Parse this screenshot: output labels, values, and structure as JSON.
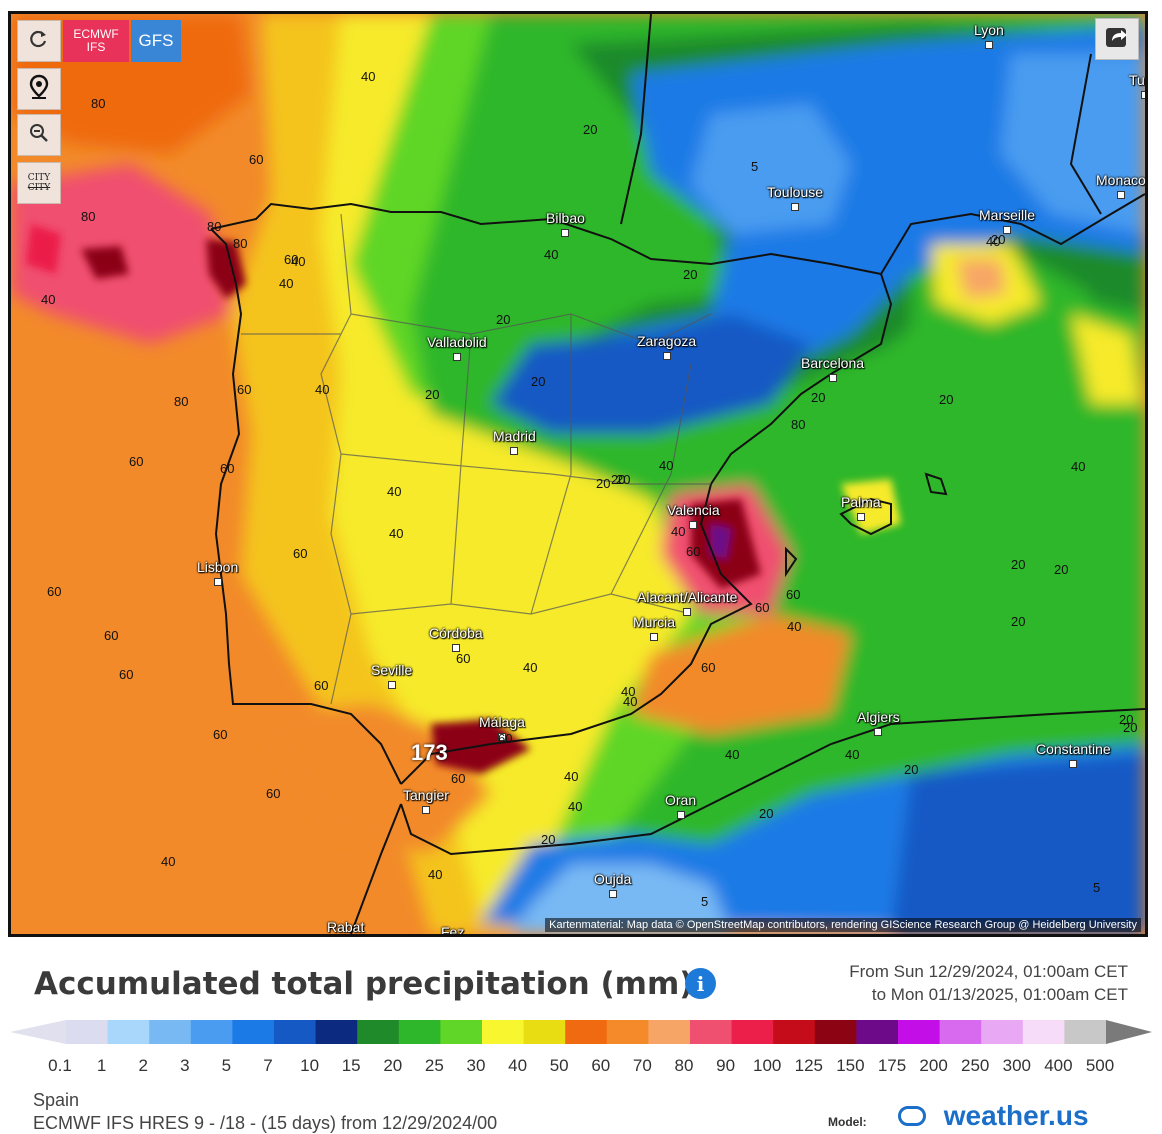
{
  "controls": {
    "refresh_icon": "refresh-icon",
    "locate_icon": "location-pin-icon",
    "zoom_out_icon": "zoom-out-icon",
    "city_toggle_label": "CITY",
    "city_toggle_label_strike": "CITY",
    "share_icon": "share-icon"
  },
  "models": [
    {
      "label_line1": "ECMWF",
      "label_line2": "IFS",
      "color": "#e8325a",
      "active": true
    },
    {
      "label_line1": "GFS",
      "label_line2": "",
      "color": "#3a86d6",
      "active": false
    }
  ],
  "map": {
    "cities": [
      "Lyon",
      "Turin",
      "Monaco",
      "Toulouse",
      "Marseille",
      "Bilbao",
      "Valladolid",
      "Zaragoza",
      "Barcelona",
      "Madrid",
      "Valencia",
      "Palma",
      "Lisbon",
      "Alacant/Alicante",
      "Murcia",
      "Córdoba",
      "Seville",
      "Málaga",
      "Algiers",
      "Constantine",
      "Tangier",
      "Oran",
      "Oujda",
      "Rabat",
      "Fez"
    ],
    "contour_labels": [
      "40",
      "80",
      "60",
      "80",
      "80",
      "80",
      "60",
      "40",
      "40",
      "60",
      "80",
      "60",
      "60",
      "60",
      "60",
      "60",
      "60",
      "60",
      "60",
      "60",
      "60",
      "40",
      "20",
      "20",
      "20",
      "20",
      "20",
      "20",
      "20",
      "20",
      "20",
      "40",
      "40",
      "40",
      "40",
      "40",
      "40",
      "40",
      "40",
      "40",
      "40",
      "40",
      "40",
      "40",
      "40",
      "40",
      "40",
      "60",
      "60",
      "60",
      "60",
      "60",
      "80",
      "5",
      "5",
      "5",
      "20",
      "20",
      "20",
      "20",
      "20",
      "20",
      "20",
      "20",
      "20",
      "40",
      "40",
      "60",
      "20"
    ],
    "max_label": "173",
    "credit": "Kartenmaterial: Map data © OpenStreetMap contributors, rendering GIScience Research Group @ Heidelberg University"
  },
  "legend": {
    "title": "Accumulated total precipitation (mm)",
    "info_icon": "info-icon",
    "period_from": "From Sun 12/29/2024, 01:00am CET",
    "period_to": "to Mon 01/13/2025, 01:00am CET",
    "scale_colors": [
      "#dcdcf0",
      "#a9d6fb",
      "#78b9f4",
      "#4a9cf0",
      "#1c7ae6",
      "#1559c4",
      "#0c2a80",
      "#1f8a2a",
      "#2fb72c",
      "#5fd628",
      "#f8f62e",
      "#e8dc12",
      "#ef6a10",
      "#f48a2a",
      "#f7a566",
      "#f05070",
      "#ec1e4a",
      "#c40c1a",
      "#8c0414",
      "#6c0a8a",
      "#c40ee8",
      "#d86af0",
      "#e8a8f4",
      "#f6dcf8",
      "#c8c8c8"
    ],
    "scale_labels": [
      "0.1",
      "1",
      "2",
      "3",
      "5",
      "7",
      "10",
      "15",
      "20",
      "25",
      "30",
      "40",
      "50",
      "60",
      "70",
      "80",
      "90",
      "100",
      "125",
      "150",
      "175",
      "200",
      "250",
      "300",
      "400",
      "500"
    ]
  },
  "footer": {
    "region": "Spain",
    "run": "ECMWF IFS HRES 9 - /18 - (15 days) from 12/29/2024/00",
    "model_label": "Model:",
    "brand": "weather.us"
  }
}
